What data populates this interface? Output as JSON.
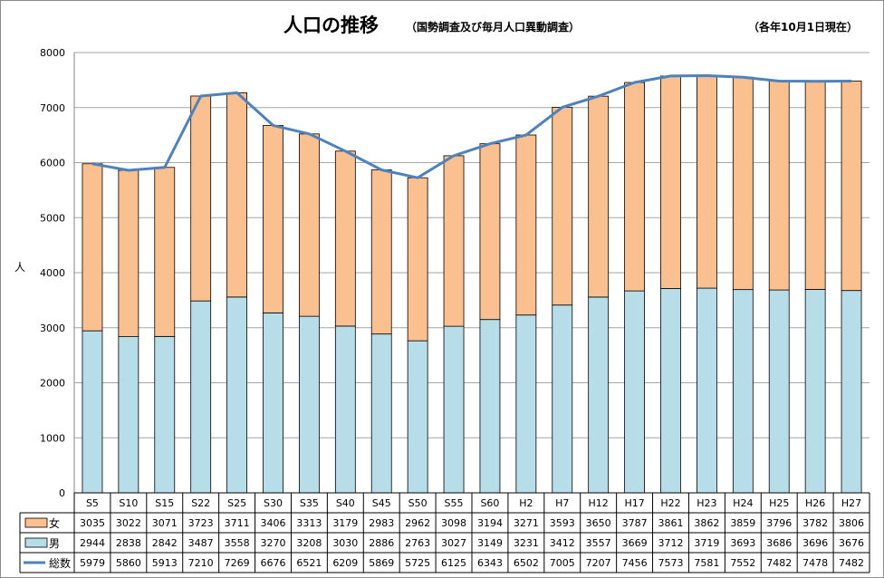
{
  "title": {
    "main": "人口の推移",
    "sub": "（国勢調査及び毎月人口異動調査）",
    "date": "（各年10月1日現在）"
  },
  "chart_data": {
    "type": "bar",
    "stacked": true,
    "categories": [
      "S5",
      "S10",
      "S15",
      "S22",
      "S25",
      "S30",
      "S35",
      "S40",
      "S45",
      "S50",
      "S55",
      "S60",
      "H2",
      "H7",
      "H12",
      "H17",
      "H22",
      "H23",
      "H24",
      "H25",
      "H26",
      "H27"
    ],
    "ylabel": "人",
    "ylim": [
      0,
      8000
    ],
    "yticks": [
      "0",
      "1000",
      "2000",
      "3000",
      "4000",
      "5000",
      "6000",
      "7000",
      "8000"
    ],
    "grid": true,
    "legend": "data-table",
    "series": [
      {
        "name": "女",
        "kind": "bar",
        "color": "#FAC090",
        "values": [
          3035,
          3022,
          3071,
          3723,
          3711,
          3406,
          3313,
          3179,
          2983,
          2962,
          3098,
          3194,
          3271,
          3593,
          3650,
          3787,
          3861,
          3862,
          3859,
          3796,
          3782,
          3806
        ]
      },
      {
        "name": "男",
        "kind": "bar",
        "color": "#B7DDE8",
        "values": [
          2944,
          2838,
          2842,
          3487,
          3558,
          3270,
          3208,
          3030,
          2886,
          2763,
          3027,
          3149,
          3231,
          3412,
          3557,
          3669,
          3712,
          3719,
          3693,
          3686,
          3696,
          3676
        ]
      },
      {
        "name": "総数",
        "kind": "line",
        "color": "#4F81BD",
        "values": [
          5979,
          5860,
          5913,
          7210,
          7269,
          6676,
          6521,
          6209,
          5869,
          5725,
          6125,
          6343,
          6502,
          7005,
          7207,
          7456,
          7573,
          7581,
          7552,
          7482,
          7478,
          7482
        ]
      }
    ]
  }
}
